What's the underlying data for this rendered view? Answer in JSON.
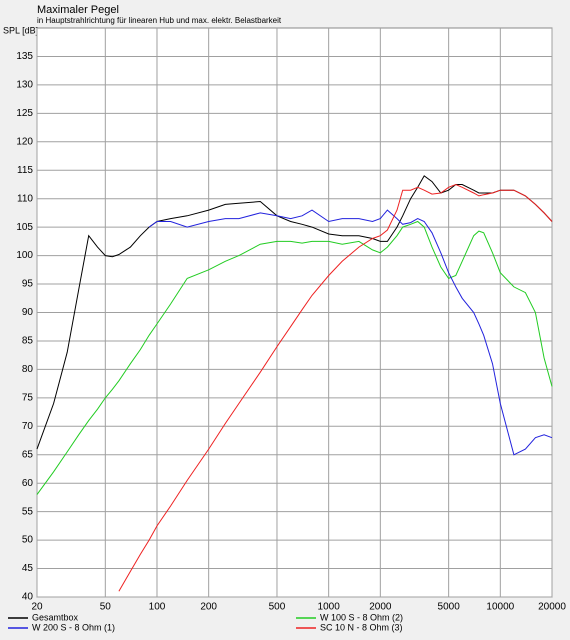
{
  "chart_data": {
    "type": "line",
    "title": "Maximaler Pegel",
    "subtitle": "in Hauptstrahlrichtung für linearen Hub und max. elektr. Belastbarkeit",
    "y_label": "SPL [dB]",
    "x_log": true,
    "grid": true,
    "legend_position": "bottom",
    "xlim": [
      20,
      20000
    ],
    "xticks": [
      20,
      50,
      100,
      200,
      500,
      1000,
      2000,
      5000,
      10000,
      20000
    ],
    "ylim": [
      40,
      140
    ],
    "yticks": [
      40,
      45,
      50,
      55,
      60,
      65,
      70,
      75,
      80,
      85,
      90,
      95,
      100,
      105,
      110,
      115,
      120,
      125,
      130,
      135
    ],
    "x": [
      20,
      25,
      30,
      35,
      40,
      45,
      50,
      55,
      60,
      70,
      80,
      90,
      100,
      120,
      150,
      200,
      250,
      300,
      400,
      500,
      600,
      700,
      800,
      1000,
      1200,
      1500,
      1800,
      2000,
      2200,
      2500,
      2700,
      3000,
      3300,
      3600,
      4000,
      4500,
      5000,
      5500,
      6000,
      7000,
      7500,
      8000,
      9000,
      10000,
      12000,
      14000,
      16000,
      18000,
      20000
    ],
    "series": [
      {
        "name": "Gesamtbox",
        "color": "#000000",
        "values": [
          66,
          74,
          83,
          94,
          103.5,
          101.5,
          100,
          99.8,
          100.2,
          101.5,
          103.5,
          105,
          106,
          106.5,
          107,
          108,
          109,
          109.2,
          109.5,
          107,
          106,
          105.5,
          105,
          103.8,
          103.5,
          103.5,
          103,
          102.5,
          102.5,
          105,
          107,
          110,
          112,
          114,
          113,
          111,
          111.5,
          112.5,
          112.5,
          111.5,
          111,
          111,
          111,
          111.5,
          111.5,
          110.5,
          109,
          107.5,
          106
        ]
      },
      {
        "name": "W 100 S - 8 Ohm (2)",
        "color": "#22cc22",
        "values": [
          58,
          62,
          65.5,
          68.5,
          71,
          73,
          75,
          76.5,
          78,
          81,
          83.5,
          86,
          88,
          91.5,
          96,
          97.5,
          99,
          100,
          102,
          102.5,
          102.5,
          102.2,
          102.5,
          102.5,
          102,
          102.5,
          101,
          100.5,
          101.5,
          103.5,
          105,
          105.5,
          106,
          105,
          101.5,
          98,
          96,
          96.5,
          99,
          103.5,
          104.3,
          104,
          100.5,
          97,
          94.5,
          93.5,
          90,
          82,
          77
        ]
      },
      {
        "name": "W 200 S - 8 Ohm (1)",
        "color": "#2222dd",
        "values": [
          null,
          null,
          null,
          null,
          null,
          null,
          null,
          null,
          null,
          null,
          null,
          105,
          106,
          106,
          105,
          106,
          106.5,
          106.5,
          107.5,
          107,
          106.5,
          107,
          108,
          106,
          106.5,
          106.5,
          106,
          106.5,
          108,
          106.5,
          105.5,
          105.8,
          106.5,
          106,
          104,
          100.5,
          97,
          94.5,
          92.5,
          90,
          88,
          86,
          81,
          74,
          65,
          66,
          68,
          68.5,
          68
        ]
      },
      {
        "name": "SC 10 N - 8 Ohm (3)",
        "color": "#ee2222",
        "values": [
          null,
          null,
          null,
          null,
          null,
          null,
          null,
          null,
          41,
          44.5,
          47.5,
          50,
          52.5,
          56,
          60.5,
          66,
          70.5,
          74,
          79.5,
          84,
          87.5,
          90.5,
          93,
          96.5,
          99,
          101.5,
          103,
          103.5,
          104.5,
          108,
          111.5,
          111.5,
          112,
          111.5,
          110.8,
          111,
          112,
          112.5,
          112,
          111,
          110.5,
          110.7,
          111,
          111.5,
          111.5,
          110.5,
          109,
          107.5,
          106
        ]
      }
    ]
  }
}
